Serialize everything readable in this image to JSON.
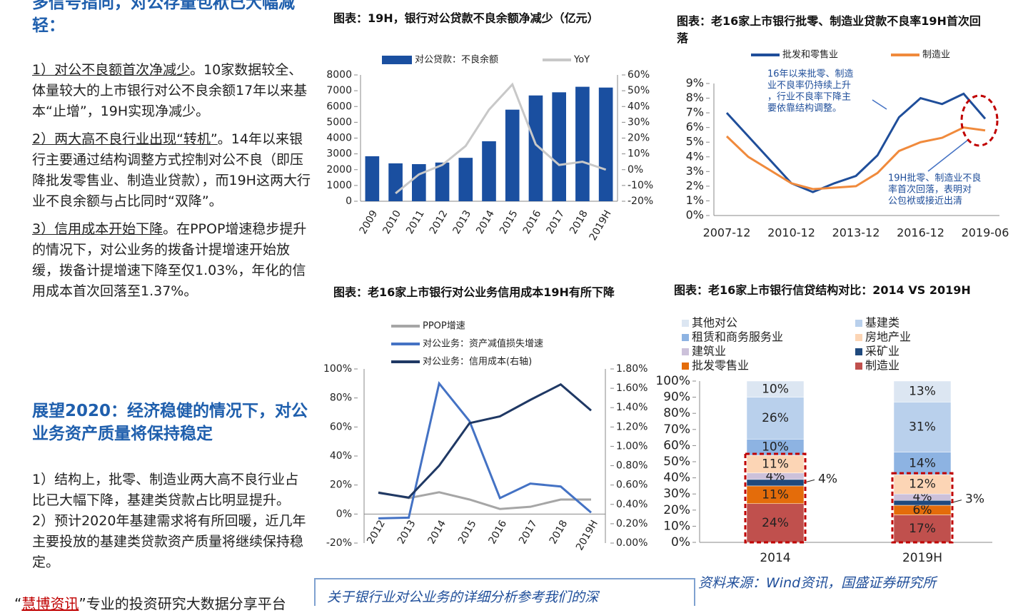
{
  "left_column": {
    "heading_1": "多信号指向，对公存量包袱已大幅减轻：",
    "paragraphs_1": [
      {
        "lead": "1）对公不良额首次净减少",
        "text": "。10家数据较全、体量较大的上市银行对公不良余额17年以来基本“止增”，19H实现净减少。"
      },
      {
        "lead": "2）两大高不良行业出现“转机”",
        "text": "。14年以来银行主要通过结构调整方式控制对公不良（即压降批发零售业、制造业贷款），而19H这两大行业不良余额与占比同时“双降”。"
      },
      {
        "lead": "3）信用成本开始下降",
        "text": "。在PPOP增速稳步提升的情况下，对公业务的拨备计提增速开始放缓，拨备计提增速下降至仅1.03%，年化的信用成本首次回落至1.37%。"
      }
    ],
    "heading_2": "展望2020：经济稳健的情况下，对公业务资产质量将保持稳定",
    "paragraphs_2": [
      "1）结构上，批零、制造业两大高不良行业占比已大幅下降，基建类贷款占比明显提升。",
      "2）预计2020年基建需求将有所回暖，近几年主要投放的基建类贷款资产质量将继续保持稳定。"
    ]
  },
  "source": "资料来源：Wind资讯，国盛证券研究所",
  "note_box": "关于银行业对公业务的详细分析参考我们的深",
  "footer": {
    "open": "“",
    "brand": "慧博资讯",
    "rest": "”专业的投资研究大数据分享平台"
  },
  "chart_data": [
    {
      "type": "bar",
      "title": "图表：19H，银行对公贷款不良余额净减少（亿元）",
      "categories": [
        "2009",
        "2010",
        "2011",
        "2012",
        "2013",
        "2014",
        "2015",
        "2016",
        "2017",
        "2018",
        "2019H"
      ],
      "series": [
        {
          "name": "对公贷款：不良余额",
          "type": "bar",
          "color": "#1a4fa0",
          "values": [
            2850,
            2400,
            2350,
            2450,
            2750,
            3800,
            5800,
            6700,
            6900,
            7250,
            7200
          ]
        },
        {
          "name": "YoY",
          "type": "line",
          "axis": "y2",
          "color": "#c8c8c8",
          "values": [
            null,
            -15,
            -3,
            3,
            15,
            38,
            54,
            16,
            3,
            5,
            0
          ]
        }
      ],
      "ylim": [
        0,
        8000
      ],
      "yticks": [
        0,
        1000,
        2000,
        3000,
        4000,
        5000,
        6000,
        7000,
        8000
      ],
      "y2lim": [
        -20,
        60
      ],
      "y2ticks": [
        {
          "value": -20,
          "label": "-20%"
        },
        {
          "value": -10,
          "label": "-10%"
        },
        {
          "value": 0,
          "label": "0%"
        },
        {
          "value": 10,
          "label": "10%"
        },
        {
          "value": 20,
          "label": "20%"
        },
        {
          "value": 30,
          "label": "30%"
        },
        {
          "value": 40,
          "label": "40%"
        },
        {
          "value": 50,
          "label": "50%"
        },
        {
          "value": 60,
          "label": "60%"
        }
      ]
    },
    {
      "type": "line",
      "title": "图表：老16家上市银行批零、制造业贷款不良率19H首次回落",
      "categories": [
        "2007-12",
        null,
        null,
        "2010-12",
        null,
        null,
        "2013-12",
        null,
        null,
        "2016-12",
        null,
        null,
        "2019-06"
      ],
      "series": [
        {
          "name": "批发和零售业",
          "color": "#1f4e9a",
          "values": [
            7.0,
            5.4,
            3.8,
            2.2,
            1.6,
            2.2,
            2.7,
            4.1,
            6.7,
            8.0,
            7.6,
            8.3,
            6.6
          ]
        },
        {
          "name": "制造业",
          "color": "#f08a3c",
          "values": [
            5.4,
            4.0,
            3.1,
            2.2,
            1.8,
            1.9,
            2.0,
            2.9,
            4.4,
            5.0,
            5.3,
            6.0,
            5.8
          ]
        }
      ],
      "ylim": [
        0,
        9
      ],
      "yticks": [
        {
          "value": 0,
          "label": "0%"
        },
        {
          "value": 1,
          "label": "1%"
        },
        {
          "value": 2,
          "label": "2%"
        },
        {
          "value": 3,
          "label": "3%"
        },
        {
          "value": 4,
          "label": "4%"
        },
        {
          "value": 5,
          "label": "5%"
        },
        {
          "value": 6,
          "label": "6%"
        },
        {
          "value": 7,
          "label": "7%"
        },
        {
          "value": 8,
          "label": "8%"
        },
        {
          "value": 9,
          "label": "9%"
        }
      ],
      "annotations": [
        [
          "16年以来批零、制造",
          "业不良率仍持续上升",
          "，行业不良率下降主",
          "要依靠结构调整。"
        ],
        [
          "19H批零、制造业不良",
          "率首次回落，表明对",
          "公包袱或接近出清"
        ]
      ]
    },
    {
      "type": "line",
      "title": "图表：老16家上市银行对公业务信用成本19H有所下降",
      "categories": [
        "2012",
        "2013",
        "2014",
        "2015",
        "2016",
        "2017",
        "2018",
        "2019H"
      ],
      "series": [
        {
          "name": "PPOP增速",
          "color": "#a6a6a6",
          "values": [
            15,
            11,
            15,
            10,
            3.5,
            5,
            10,
            10
          ]
        },
        {
          "name": "对公业务：资产减值损失增速",
          "color": "#4472c4",
          "values": [
            -3,
            -2.5,
            90,
            64,
            11,
            21,
            19,
            1
          ]
        },
        {
          "name": "对公业务：信用成本(右轴)",
          "axis": "y2",
          "color": "#1f3864",
          "values": [
            0.52,
            0.47,
            0.8,
            1.24,
            1.31,
            1.48,
            1.64,
            1.37
          ]
        }
      ],
      "ylim": [
        -20,
        100
      ],
      "yticks": [
        {
          "value": -20,
          "label": "-20%"
        },
        {
          "value": 0,
          "label": "0%"
        },
        {
          "value": 20,
          "label": "20%"
        },
        {
          "value": 40,
          "label": "40%"
        },
        {
          "value": 60,
          "label": "60%"
        },
        {
          "value": 80,
          "label": "80%"
        },
        {
          "value": 100,
          "label": "100%"
        }
      ],
      "y2lim": [
        0,
        1.8
      ],
      "y2ticks": [
        {
          "value": 0,
          "label": "0.00%"
        },
        {
          "value": 0.2,
          "label": "0.20%"
        },
        {
          "value": 0.4,
          "label": "0.40%"
        },
        {
          "value": 0.6,
          "label": "0.60%"
        },
        {
          "value": 0.8,
          "label": "0.80%"
        },
        {
          "value": 1.0,
          "label": "1.00%"
        },
        {
          "value": 1.2,
          "label": "1.20%"
        },
        {
          "value": 1.4,
          "label": "1.40%"
        },
        {
          "value": 1.6,
          "label": "1.60%"
        },
        {
          "value": 1.8,
          "label": "1.80%"
        }
      ]
    },
    {
      "type": "stacked_bar",
      "title": "图表：老16家上市银行信贷结构对比：2014 VS 2019H",
      "categories": [
        "2014",
        "2019H"
      ],
      "series": [
        {
          "name": "制造业",
          "color": "#c0504d",
          "values": [
            24,
            17
          ],
          "value_labels": [
            "24%",
            "17%"
          ]
        },
        {
          "name": "批发零售业",
          "color": "#e46c0a",
          "values": [
            11,
            6
          ],
          "value_labels": [
            "11%",
            "6%"
          ]
        },
        {
          "name": "采矿业",
          "color": "#1f497d",
          "values": [
            4,
            3
          ],
          "value_labels": [
            "4%",
            "3%"
          ]
        },
        {
          "name": "建筑业",
          "color": "#ccc1da",
          "values": [
            4,
            4
          ],
          "value_labels": [
            "4%",
            "4%"
          ]
        },
        {
          "name": "房地产业",
          "color": "#fcd5b5",
          "values": [
            11,
            12
          ],
          "value_labels": [
            "11%",
            "12%"
          ]
        },
        {
          "name": "租赁和商务服务业",
          "color": "#8db3e2",
          "values": [
            10,
            14
          ],
          "value_labels": [
            "10%",
            "14%"
          ]
        },
        {
          "name": "基建类",
          "color": "#b9d0ec",
          "values": [
            26,
            31
          ],
          "value_labels": [
            "26%",
            "31%"
          ]
        },
        {
          "name": "其他对公",
          "color": "#dce6f2",
          "values": [
            10,
            13
          ],
          "value_labels": [
            "10%",
            "13%"
          ]
        }
      ],
      "ylim": [
        0,
        100
      ],
      "yticks": [
        {
          "value": 0,
          "label": "0%"
        },
        {
          "value": 10,
          "label": "10%"
        },
        {
          "value": 20,
          "label": "20%"
        },
        {
          "value": 30,
          "label": "30%"
        },
        {
          "value": 40,
          "label": "40%"
        },
        {
          "value": 50,
          "label": "50%"
        },
        {
          "value": 60,
          "label": "60%"
        },
        {
          "value": 70,
          "label": "70%"
        },
        {
          "value": 80,
          "label": "80%"
        },
        {
          "value": 90,
          "label": "90%"
        },
        {
          "value": 100,
          "label": "100%"
        }
      ]
    }
  ]
}
